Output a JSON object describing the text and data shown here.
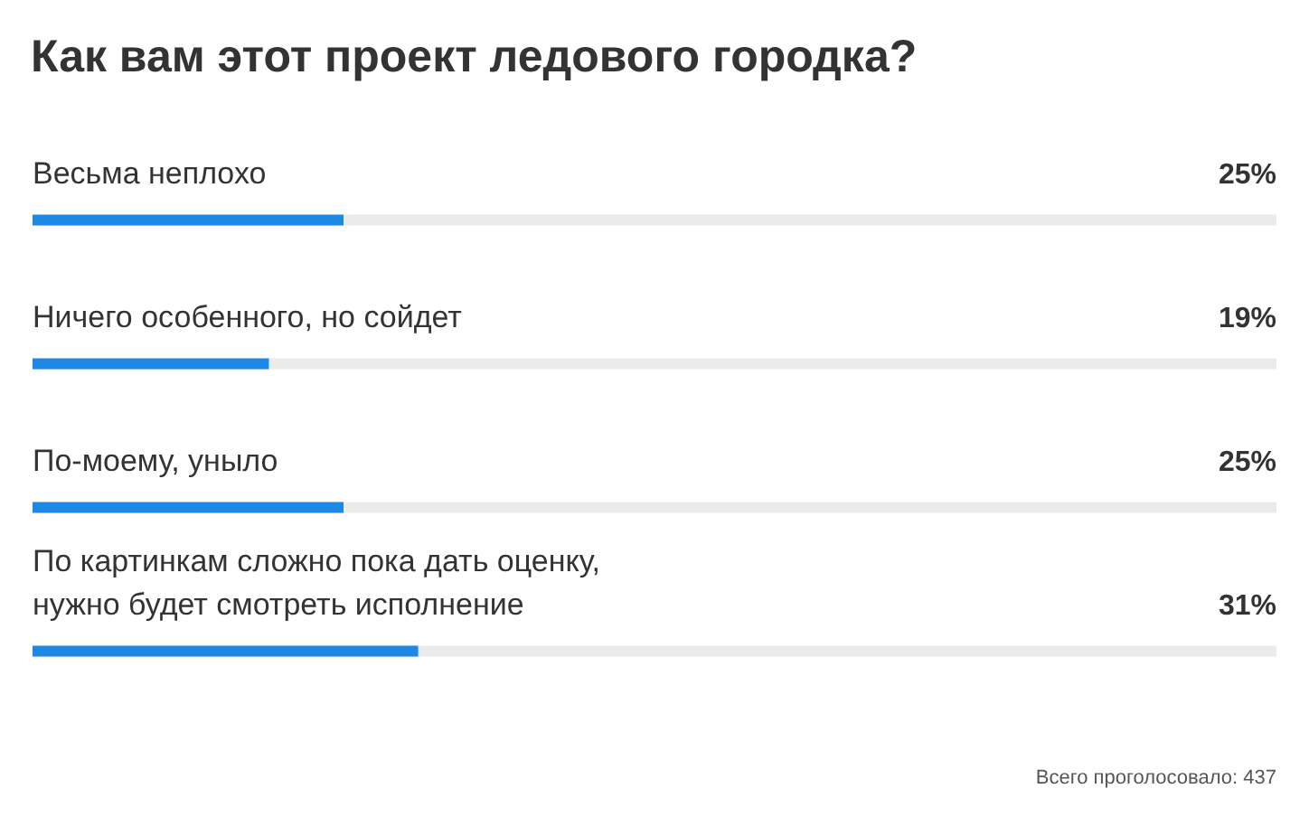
{
  "chart_data": {
    "type": "bar",
    "orientation": "horizontal",
    "title": "Как вам этот проект ледового городка?",
    "categories": [
      "Весьма неплохо",
      "Ничего особенного, но сойдет",
      "По-моему, уныло",
      "По картинкам сложно пока дать оценку, нужно будет смотреть исполнение"
    ],
    "values": [
      25,
      19,
      25,
      31
    ],
    "color": "#1e88e5",
    "value_labels": [
      "25%",
      "19%",
      "25%",
      "31%"
    ],
    "xlim": [
      0,
      100
    ],
    "tick_labels": "y",
    "annotations": [
      "Всего проголосовало: 437"
    ]
  }
}
